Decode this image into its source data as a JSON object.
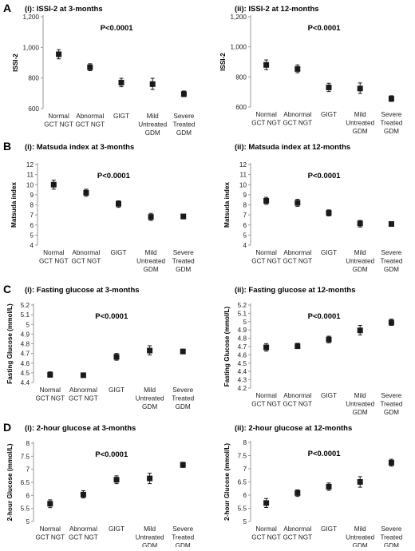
{
  "figure": {
    "marker_color": "#1a1a1a",
    "axis_color": "#9a9a9a",
    "categories": [
      [
        "Normal",
        "GCT NGT"
      ],
      [
        "Abnormal",
        "GCT NGT"
      ],
      [
        "GIGT"
      ],
      [
        "Mild",
        "Untreated",
        "GDM"
      ],
      [
        "Severe",
        "Treated",
        "GDM"
      ]
    ],
    "rows": [
      {
        "letter": "A"
      },
      {
        "letter": "B"
      },
      {
        "letter": "C"
      },
      {
        "letter": "D"
      }
    ]
  },
  "chart_data": [
    {
      "type": "scatter",
      "title": "(i): ISSI-2 at 3-months",
      "annotation": "P<0.0001",
      "ylabel": "ISSI-2",
      "ylim": [
        600,
        1200
      ],
      "yticks": [
        600,
        800,
        1000,
        1200
      ],
      "ytick_labels": [
        "600",
        "800",
        "1,000",
        "1,200"
      ],
      "categories": [
        "Normal GCT NGT",
        "Abnormal GCT NGT",
        "GIGT",
        "Mild Untreated GDM",
        "Severe Treated GDM"
      ],
      "values": [
        955,
        870,
        770,
        760,
        695
      ],
      "error": [
        [
          925,
          985
        ],
        [
          848,
          893
        ],
        [
          743,
          798
        ],
        [
          725,
          798
        ],
        [
          678,
          715
        ]
      ]
    },
    {
      "type": "scatter",
      "title": "(ii): ISSI-2 at 12-months",
      "annotation": "P<0.0001",
      "ylabel": "ISSI-2",
      "ylim": [
        600,
        1200
      ],
      "yticks": [
        600,
        800,
        1000,
        1200
      ],
      "ytick_labels": [
        "600",
        "800",
        "1,000",
        "1,200"
      ],
      "categories": [
        "Normal GCT NGT",
        "Abnormal GCT NGT",
        "GIGT",
        "Mild Untreated GDM",
        "Severe Treated GDM"
      ],
      "values": [
        880,
        853,
        730,
        723,
        655
      ],
      "error": [
        [
          848,
          913
        ],
        [
          828,
          880
        ],
        [
          703,
          758
        ],
        [
          690,
          760
        ],
        [
          637,
          675
        ]
      ]
    },
    {
      "type": "scatter",
      "title": "(i): Matsuda index at 3-months",
      "annotation": "P<0.0001",
      "ylabel": "Matsuda index",
      "ylim": [
        4,
        12
      ],
      "yticks": [
        4,
        5,
        6,
        7,
        8,
        9,
        10,
        11,
        12
      ],
      "ytick_labels": [
        "4",
        "5",
        "6",
        "7",
        "8",
        "9",
        "10",
        "11",
        "12"
      ],
      "categories": [
        "Normal GCT NGT",
        "Abnormal GCT NGT",
        "GIGT",
        "Mild Untreated GDM",
        "Severe Treated GDM"
      ],
      "values": [
        10.0,
        9.2,
        8.1,
        6.8,
        6.85
      ],
      "error": [
        [
          9.55,
          10.45
        ],
        [
          8.85,
          9.55
        ],
        [
          7.75,
          8.4
        ],
        [
          6.45,
          7.15
        ],
        [
          6.6,
          7.05
        ]
      ]
    },
    {
      "type": "scatter",
      "title": "(ii): Matsuda index at 12-months",
      "annotation": "P<0.0001",
      "ylabel": "Matsuda index",
      "ylim": [
        4,
        12
      ],
      "yticks": [
        4,
        5,
        6,
        7,
        8,
        9,
        10,
        11,
        12
      ],
      "ytick_labels": [
        "4",
        "5",
        "6",
        "7",
        "8",
        "9",
        "10",
        "11",
        "12"
      ],
      "categories": [
        "Normal GCT NGT",
        "Abnormal GCT NGT",
        "GIGT",
        "Mild Untreated GDM",
        "Severe Treated GDM"
      ],
      "values": [
        8.4,
        8.2,
        7.2,
        6.15,
        6.1
      ],
      "error": [
        [
          8.05,
          8.75
        ],
        [
          7.85,
          8.55
        ],
        [
          6.9,
          7.5
        ],
        [
          5.8,
          6.45
        ],
        [
          5.9,
          6.3
        ]
      ]
    },
    {
      "type": "scatter",
      "title": "(i): Fasting glucose at 3-months",
      "annotation": "P<0.0001",
      "ylabel": "Fasting Glucose (mmol/L)",
      "ylim": [
        4.4,
        5.2
      ],
      "yticks": [
        4.4,
        4.5,
        4.6,
        4.7,
        4.8,
        4.9,
        5.0,
        5.1,
        5.2
      ],
      "ytick_labels": [
        "4.4",
        "4.5",
        "4.6",
        "4.7",
        "4.8",
        "4.9",
        "5",
        "5.1",
        "5.2"
      ],
      "categories": [
        "Normal GCT NGT",
        "Abnormal GCT NGT",
        "GIGT",
        "Mild Untreated GDM",
        "Severe Treated GDM"
      ],
      "values": [
        4.48,
        4.475,
        4.665,
        4.73,
        4.72
      ],
      "error": [
        [
          4.455,
          4.51
        ],
        [
          4.455,
          4.495
        ],
        [
          4.63,
          4.7
        ],
        [
          4.685,
          4.78
        ],
        [
          4.7,
          4.745
        ]
      ]
    },
    {
      "type": "scatter",
      "title": "(ii): Fasting glucose at 12-months",
      "annotation": "P<0.0001",
      "ylabel": "Fasting Glucose (mmol/L)",
      "ylim": [
        4.2,
        5.2
      ],
      "yticks": [
        4.2,
        4.3,
        4.4,
        4.5,
        4.6,
        4.7,
        4.8,
        4.9,
        5.0,
        5.1,
        5.2
      ],
      "ytick_labels": [
        "4.2",
        "4.3",
        "4.4",
        "4.5",
        "4.6",
        "4.7",
        "4.8",
        "4.9",
        "5",
        "5.1",
        "5.2"
      ],
      "categories": [
        "Normal GCT NGT",
        "Abnormal GCT NGT",
        "GIGT",
        "Mild Untreated GDM",
        "Severe Treated GDM"
      ],
      "values": [
        4.69,
        4.705,
        4.785,
        4.895,
        4.99
      ],
      "error": [
        [
          4.645,
          4.735
        ],
        [
          4.675,
          4.74
        ],
        [
          4.745,
          4.825
        ],
        [
          4.84,
          4.955
        ],
        [
          4.955,
          5.03
        ]
      ]
    },
    {
      "type": "scatter",
      "title": "(i): 2-hour glucose at 3-months",
      "annotation": "P<0.0001",
      "ylabel": "2-hour Glucose (mmol/L)",
      "ylim": [
        5,
        8
      ],
      "yticks": [
        5,
        5.5,
        6,
        6.5,
        7,
        7.5,
        8
      ],
      "ytick_labels": [
        "5",
        "5.5",
        "6",
        "6.5",
        "7",
        "7.5",
        "8"
      ],
      "categories": [
        "Normal GCT NGT",
        "Abnormal GCT NGT",
        "GIGT",
        "Mild Untreated GDM",
        "Severe Treated GDM"
      ],
      "values": [
        5.68,
        6.03,
        6.6,
        6.65,
        7.17
      ],
      "error": [
        [
          5.53,
          5.83
        ],
        [
          5.9,
          6.18
        ],
        [
          6.45,
          6.75
        ],
        [
          6.45,
          6.85
        ],
        [
          7.07,
          7.27
        ]
      ]
    },
    {
      "type": "scatter",
      "title": "(ii): 2-hour glucose at 12-months",
      "annotation": "P<0.0001",
      "ylabel": "2-hour Glucose (mmol/L)",
      "ylim": [
        5,
        8
      ],
      "yticks": [
        5,
        5.5,
        6,
        6.5,
        7,
        7.5,
        8
      ],
      "ytick_labels": [
        "5",
        "5.5",
        "6",
        "6.5",
        "7",
        "7.5",
        "8"
      ],
      "categories": [
        "Normal GCT NGT",
        "Abnormal GCT NGT",
        "GIGT",
        "Mild Untreated GDM",
        "Severe Treated GDM"
      ],
      "values": [
        5.7,
        6.08,
        6.32,
        6.5,
        7.23
      ],
      "error": [
        [
          5.53,
          5.87
        ],
        [
          5.95,
          6.2
        ],
        [
          6.18,
          6.46
        ],
        [
          6.3,
          6.7
        ],
        [
          7.1,
          7.36
        ]
      ]
    }
  ]
}
